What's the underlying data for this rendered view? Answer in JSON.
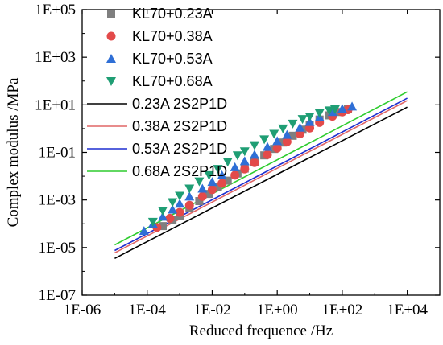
{
  "chart_data": {
    "type": "scatter",
    "xlabel": "Reduced frequence /Hz",
    "ylabel": "Complex modulus /MPa",
    "xscale": "log",
    "yscale": "log",
    "xlim": [
      1e-06,
      100000.0
    ],
    "ylim": [
      1e-07,
      100000.0
    ],
    "x_ticks": [
      1e-06,
      0.0001,
      0.01,
      1.0,
      100.0,
      10000.0
    ],
    "x_tick_labels": [
      "1E-06",
      "1E-04",
      "1E-02",
      "1E+00",
      "1E+02",
      "1E+04"
    ],
    "y_ticks": [
      1e-07,
      1e-05,
      0.001,
      0.1,
      10.0,
      1000.0,
      100000.0
    ],
    "y_tick_labels": [
      "1E-07",
      "1E-05",
      "1E-03",
      "1E-01",
      "1E+01",
      "1E+03",
      "1E+05"
    ],
    "grid": false,
    "legend_position": "top-left",
    "series": [
      {
        "name": "KL70+0.23A",
        "kind": "scatter",
        "marker": "square",
        "color": "#7f7f7f",
        "x": [
          0.0003,
          0.0006,
          0.001,
          0.002,
          0.004,
          0.008,
          0.015,
          0.03,
          0.06,
          0.1,
          0.2,
          0.4,
          0.8,
          1.5,
          3,
          6,
          10,
          20,
          40,
          80,
          150
        ],
        "y": [
          8e-05,
          0.00015,
          0.00022,
          0.00045,
          0.0009,
          0.0018,
          0.0035,
          0.0065,
          0.013,
          0.021,
          0.04,
          0.075,
          0.14,
          0.26,
          0.5,
          0.9,
          1.4,
          2.4,
          3.6,
          5.0,
          6.5
        ]
      },
      {
        "name": "KL70+0.38A",
        "kind": "scatter",
        "marker": "circle",
        "color": "#e34a4a",
        "x": [
          0.0002,
          0.0005,
          0.001,
          0.002,
          0.005,
          0.01,
          0.02,
          0.05,
          0.1,
          0.2,
          0.5,
          1,
          2,
          5,
          10,
          20,
          50,
          100,
          150
        ],
        "y": [
          7e-05,
          0.00017,
          0.0003,
          0.0006,
          0.0014,
          0.0027,
          0.005,
          0.011,
          0.02,
          0.037,
          0.08,
          0.15,
          0.28,
          0.6,
          1.05,
          1.8,
          3.3,
          5.0,
          6.2
        ]
      },
      {
        "name": "KL70+0.53A",
        "kind": "scatter",
        "marker": "triangle-up",
        "color": "#2f6fd6",
        "x": [
          8e-05,
          0.00015,
          0.0003,
          0.0006,
          0.001,
          0.002,
          0.005,
          0.01,
          0.02,
          0.05,
          0.1,
          0.2,
          0.5,
          1,
          2,
          5,
          10,
          20,
          50,
          100,
          200
        ],
        "y": [
          5e-05,
          0.0001,
          0.0002,
          0.0004,
          0.0007,
          0.0014,
          0.003,
          0.0058,
          0.011,
          0.024,
          0.043,
          0.08,
          0.17,
          0.3,
          0.55,
          1.1,
          1.9,
          3.0,
          5.0,
          6.8,
          8.5
        ]
      },
      {
        "name": "KL70+0.68A",
        "kind": "scatter",
        "marker": "triangle-down",
        "color": "#1f9e74",
        "x": [
          0.00015,
          0.0003,
          0.0006,
          0.001,
          0.002,
          0.004,
          0.008,
          0.015,
          0.03,
          0.06,
          0.1,
          0.2,
          0.4,
          0.8,
          1.5,
          3,
          6,
          10,
          20,
          40,
          60
        ],
        "y": [
          0.00012,
          0.00035,
          0.0008,
          0.0015,
          0.003,
          0.006,
          0.011,
          0.02,
          0.04,
          0.075,
          0.11,
          0.2,
          0.35,
          0.6,
          1.0,
          1.6,
          2.5,
          3.2,
          4.5,
          5.8,
          6.5
        ]
      },
      {
        "name": "0.23A 2S2P1D",
        "kind": "line",
        "color": "#000000",
        "x": [
          1e-05,
          10000.0
        ],
        "y": [
          3.5e-06,
          8
        ]
      },
      {
        "name": "0.38A 2S2P1D",
        "kind": "line",
        "color": "#e06666",
        "x": [
          1e-05,
          10000.0
        ],
        "y": [
          6e-06,
          15
        ]
      },
      {
        "name": "0.53A 2S2P1D",
        "kind": "line",
        "color": "#1f2fd0",
        "x": [
          1e-05,
          10000.0
        ],
        "y": [
          7.5e-06,
          19
        ]
      },
      {
        "name": "0.68A 2S2P1D",
        "kind": "line",
        "color": "#2ecc2e",
        "x": [
          1e-05,
          10000.0
        ],
        "y": [
          1.3e-05,
          35
        ]
      }
    ]
  }
}
